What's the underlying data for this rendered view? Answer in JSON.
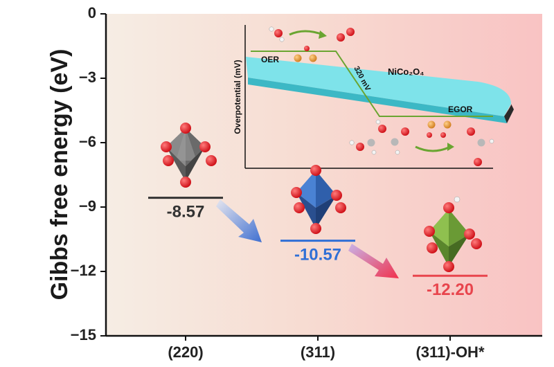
{
  "chart_data": {
    "type": "line",
    "ylabel": "Gibbs free energy (eV)",
    "xlabel": "",
    "ylim": [
      -15,
      0
    ],
    "yticks": [
      0,
      -3,
      -6,
      -9,
      -12,
      -15
    ],
    "ytick_labels": [
      "0",
      "−3",
      "−6",
      "−9",
      "−12",
      "−15"
    ],
    "categories": [
      "(220)",
      "(311)",
      "(311)-OH*"
    ],
    "values": [
      -8.57,
      -10.57,
      -12.2
    ],
    "value_labels": [
      "-8.57",
      "-10.57",
      "-12.20"
    ],
    "level_colors": [
      "#333333",
      "#2f6fd6",
      "#e8454d"
    ],
    "grid": false,
    "inset": {
      "ylabel": "Overpotential (mV)",
      "oer_label": "OER",
      "egor_label": "EGOR",
      "delta_label": "320 mV",
      "material_label": "NiCo₂O₄"
    }
  },
  "colors": {
    "background_left": "#f6eee6",
    "background_right": "#f9c4c4",
    "polyhedron_220": "#7d7d7d",
    "polyhedron_311": "#3f76c9",
    "polyhedron_311_oh": "#76a83f",
    "oxygen": "#e0141c",
    "hydrogen": "#f2f2f2",
    "slab": "#5fd2dc",
    "inset_line": "#6aa531"
  }
}
